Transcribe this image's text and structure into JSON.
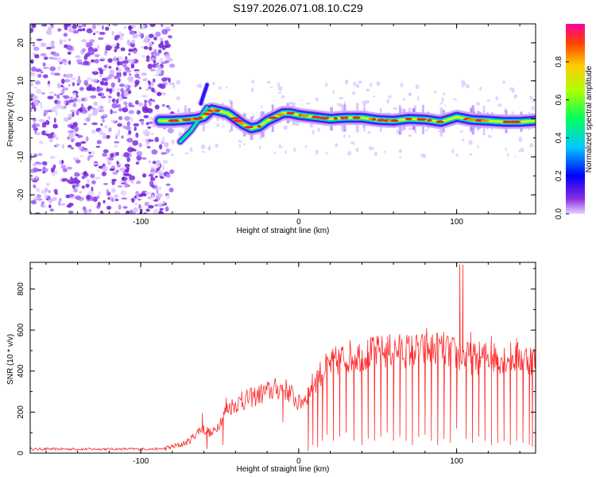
{
  "title": "S197.2026.071.08.10.C29",
  "chart_data": [
    {
      "type": "heatmap",
      "name": "spectrogram",
      "xlabel": "Height of straight line (km)",
      "ylabel": "Frequency (Hz)",
      "xlim": [
        -170,
        150
      ],
      "ylim": [
        -25,
        25
      ],
      "xticks": [
        -100,
        0,
        100
      ],
      "yticks": [
        -20,
        -10,
        0,
        10,
        20
      ],
      "noise_region_x": [
        -170,
        -83
      ],
      "ridge": {
        "x": [
          -88,
          -80,
          -72,
          -65,
          -60,
          -55,
          -50,
          -45,
          -40,
          -35,
          -30,
          -25,
          -20,
          -15,
          -10,
          -5,
          0,
          10,
          20,
          30,
          40,
          50,
          60,
          70,
          80,
          90,
          100,
          110,
          120,
          130,
          140,
          150
        ],
        "freq": [
          -0.5,
          -0.5,
          -0.3,
          0.0,
          0.5,
          2.5,
          2.0,
          1.5,
          0.0,
          -1.5,
          -2.5,
          -2.0,
          -0.5,
          0.5,
          1.5,
          1.5,
          1.0,
          0.5,
          0.0,
          0.3,
          0.3,
          -0.3,
          -0.5,
          0.0,
          -0.2,
          -0.8,
          0.5,
          -0.3,
          -0.5,
          -0.8,
          -0.8,
          -0.5
        ]
      },
      "branch": {
        "x": [
          -75,
          -68,
          -63,
          -58
        ],
        "freq": [
          -6,
          -3,
          0,
          3
        ]
      },
      "upper_streak": {
        "x": [
          -62,
          -58
        ],
        "freq": [
          4,
          9
        ]
      },
      "colorbar": {
        "label": "Normalized spectral amplitude",
        "range": [
          0,
          1
        ],
        "ticks": [
          0.0,
          0.2,
          0.4,
          0.6,
          0.8
        ]
      }
    },
    {
      "type": "line",
      "name": "snr",
      "xlabel": "Height of straight line (km)",
      "ylabel": "SNR (10 * v/v)",
      "xlim": [
        -170,
        150
      ],
      "ylim": [
        0,
        930
      ],
      "xticks": [
        -100,
        0,
        100
      ],
      "yticks": [
        0,
        200,
        400,
        600,
        800
      ],
      "color": "#ff2a2a",
      "envelope": {
        "x": [
          -170,
          -120,
          -90,
          -85,
          -75,
          -70,
          -62,
          -58,
          -55,
          -50,
          -45,
          -40,
          -30,
          -20,
          -10,
          -5,
          0,
          5,
          10,
          15,
          20,
          30,
          40,
          50,
          60,
          80,
          90,
          100,
          110,
          120,
          150
        ],
        "y": [
          20,
          20,
          20,
          22,
          40,
          55,
          120,
          110,
          90,
          150,
          220,
          240,
          270,
          300,
          320,
          290,
          240,
          280,
          350,
          400,
          430,
          470,
          480,
          490,
          500,
          500,
          510,
          480,
          460,
          470,
          460
        ]
      },
      "spikes_up": [
        [
          -61,
          195
        ],
        [
          -46,
          270
        ],
        [
          -36,
          300
        ],
        [
          68,
          520
        ],
        [
          81,
          610
        ],
        [
          102,
          920
        ],
        [
          104,
          920
        ],
        [
          109,
          590
        ],
        [
          122,
          570
        ],
        [
          138,
          560
        ]
      ],
      "dropouts": [
        [
          -58,
          20
        ],
        [
          -48,
          40
        ],
        [
          -10,
          150
        ],
        [
          6,
          10
        ],
        [
          9,
          40
        ],
        [
          12,
          30
        ],
        [
          15,
          60
        ],
        [
          18,
          90
        ],
        [
          22,
          60
        ],
        [
          26,
          80
        ],
        [
          30,
          100
        ],
        [
          35,
          60
        ],
        [
          40,
          40
        ],
        [
          44,
          70
        ],
        [
          48,
          60
        ],
        [
          52,
          80
        ],
        [
          56,
          100
        ],
        [
          60,
          60
        ],
        [
          64,
          80
        ],
        [
          68,
          60
        ],
        [
          72,
          40
        ],
        [
          76,
          80
        ],
        [
          80,
          90
        ],
        [
          84,
          60
        ],
        [
          88,
          40
        ],
        [
          92,
          70
        ],
        [
          96,
          50
        ],
        [
          100,
          120
        ],
        [
          106,
          70
        ],
        [
          110,
          50
        ],
        [
          114,
          80
        ],
        [
          118,
          60
        ],
        [
          122,
          40
        ],
        [
          126,
          50
        ],
        [
          130,
          60
        ],
        [
          134,
          40
        ],
        [
          138,
          60
        ],
        [
          142,
          50
        ],
        [
          146,
          40
        ],
        [
          148,
          30
        ]
      ]
    }
  ]
}
